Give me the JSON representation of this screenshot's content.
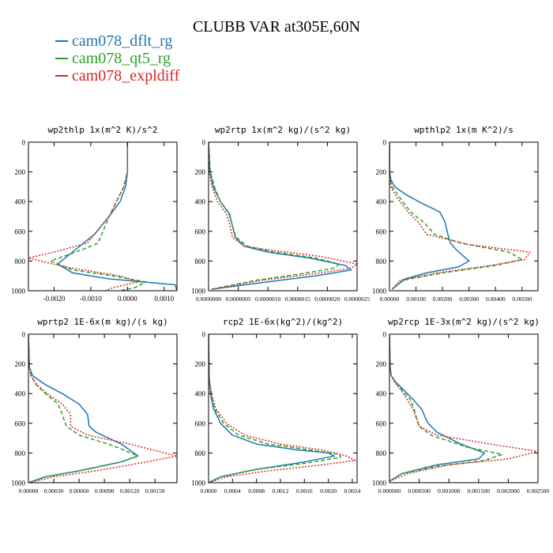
{
  "title": "CLUBB VAR at305E,60N",
  "legend": [
    {
      "name": "cam078_dflt_rg",
      "color": "#1f77b4"
    },
    {
      "name": "cam078_qt5_rg",
      "color": "#2ca02c"
    },
    {
      "name": "cam078_expldiff",
      "color": "#d62728"
    }
  ],
  "chart_data": [
    {
      "type": "line",
      "title": "wp2thlp 1x(m^2 K)/s^2",
      "ylim": [
        1000,
        0
      ],
      "xlim": [
        -0.0027,
        0.00135
      ],
      "yticks": [
        "0",
        "200",
        "400",
        "600",
        "800",
        "1000"
      ],
      "yticks_values": [
        0,
        200,
        400,
        600,
        800,
        1000
      ],
      "xticks": [
        "-0.0020",
        "-0.0010",
        "0.0000",
        "0.0010"
      ],
      "xticks_values": [
        -0.002,
        -0.001,
        0.0,
        0.001
      ],
      "series": [
        {
          "color_key": 0,
          "dash": false,
          "x": [
            0.0,
            0.0,
            -5e-05,
            -0.0002,
            -0.0005,
            -0.0007,
            -0.0009,
            -0.0011,
            -0.0013,
            -0.0019,
            -0.0015,
            -0.0005,
            0.0004,
            0.0013,
            0.00135
          ],
          "y": [
            0,
            200,
            300,
            400,
            500,
            560,
            620,
            660,
            700,
            820,
            880,
            920,
            940,
            960,
            1000
          ]
        },
        {
          "color_key": 1,
          "dash": true,
          "x": [
            0.0,
            0.0,
            -0.0001,
            -0.0003,
            -0.0005,
            -0.0006,
            -0.0007,
            -0.0008,
            -0.0012,
            -0.0021,
            -0.0015,
            -0.0004,
            0.0005,
            0.0002,
            -0.0002
          ],
          "y": [
            0,
            200,
            300,
            400,
            500,
            560,
            620,
            680,
            720,
            800,
            860,
            900,
            940,
            980,
            1000
          ]
        },
        {
          "color_key": 2,
          "dash": true,
          "x": [
            0.0,
            0.0,
            -0.0001,
            -0.0003,
            -0.0005,
            -0.0007,
            -0.0009,
            -0.0011,
            -0.002,
            -0.0027,
            -0.0017,
            -0.0002,
            0.0003,
            -0.0004,
            -0.0006
          ],
          "y": [
            0,
            200,
            300,
            400,
            500,
            560,
            620,
            680,
            740,
            780,
            840,
            900,
            940,
            980,
            1000
          ]
        }
      ]
    },
    {
      "type": "line",
      "title": "wp2rtp 1x(m^2 kg)/(s^2 kg)",
      "ylim": [
        1000,
        0
      ],
      "xlim": [
        0.0,
        2.5e-06
      ],
      "yticks": [
        "0",
        "200",
        "400",
        "600",
        "800",
        "1000"
      ],
      "yticks_values": [
        0,
        200,
        400,
        600,
        800,
        1000
      ],
      "xticks": [
        "0.0000000",
        "0.0000005",
        "0.0000010",
        "0.0000015",
        "0.0000020",
        "0.0000025"
      ],
      "xticks_values": [
        0.0,
        5e-07,
        1e-06,
        1.5e-06,
        2e-06,
        2.5e-06
      ],
      "series": [
        {
          "color_key": 0,
          "dash": false,
          "x": [
            0.0,
            2e-08,
            8e-08,
            2e-07,
            3.5e-07,
            4e-07,
            4.5e-07,
            6e-07,
            1e-06,
            1.7e-06,
            2.3e-06,
            2.4e-06,
            1.8e-06,
            1e-06,
            5e-08
          ],
          "y": [
            0,
            200,
            300,
            400,
            480,
            560,
            640,
            700,
            740,
            780,
            830,
            860,
            900,
            940,
            990
          ]
        },
        {
          "color_key": 1,
          "dash": true,
          "x": [
            0.0,
            3e-08,
            1e-07,
            2e-07,
            3.4e-07,
            4e-07,
            4.6e-07,
            6.5e-07,
            1.1e-06,
            1.8e-06,
            2.2e-06,
            2.1e-06,
            1.5e-06,
            8e-07,
            5e-08
          ],
          "y": [
            0,
            200,
            300,
            400,
            480,
            560,
            640,
            700,
            740,
            780,
            820,
            850,
            890,
            930,
            990
          ]
        },
        {
          "color_key": 2,
          "dash": true,
          "x": [
            0.0,
            1e-08,
            6e-08,
            1.5e-07,
            3e-07,
            3.6e-07,
            4e-07,
            6e-07,
            1.1e-06,
            1.9e-06,
            2.5e-06,
            2.4e-06,
            1.7e-06,
            9e-07,
            5e-08
          ],
          "y": [
            0,
            200,
            300,
            400,
            480,
            560,
            640,
            700,
            730,
            770,
            820,
            850,
            890,
            930,
            990
          ]
        }
      ]
    },
    {
      "type": "line",
      "title": "wpthlp2 1x(m K^2)/s",
      "ylim": [
        1000,
        0
      ],
      "xlim": [
        0.0,
        0.0056
      ],
      "yticks": [
        "0",
        "200",
        "400",
        "600",
        "800",
        "1000"
      ],
      "yticks_values": [
        0,
        200,
        400,
        600,
        800,
        1000
      ],
      "xticks": [
        "0.00000",
        "0.00100",
        "0.00200",
        "0.00300",
        "0.00400",
        "0.00500"
      ],
      "xticks_values": [
        0.0,
        0.001,
        0.002,
        0.003,
        0.004,
        0.005
      ],
      "series": [
        {
          "color_key": 0,
          "dash": false,
          "x": [
            0.0,
            1e-05,
            5e-05,
            0.0002,
            0.0006,
            0.0011,
            0.0019,
            0.0021,
            0.0022,
            0.0023,
            0.0025,
            0.003,
            0.0026,
            0.0014,
            0.0006,
            0.0001
          ],
          "y": [
            0,
            200,
            250,
            300,
            350,
            400,
            470,
            540,
            620,
            680,
            720,
            800,
            840,
            880,
            920,
            990
          ]
        },
        {
          "color_key": 1,
          "dash": true,
          "x": [
            0.0,
            1e-05,
            3e-05,
            0.0001,
            0.0003,
            0.0005,
            0.0008,
            0.0013,
            0.0017,
            0.0027,
            0.0045,
            0.005,
            0.004,
            0.002,
            0.0005,
            0.0001
          ],
          "y": [
            0,
            200,
            250,
            300,
            350,
            400,
            470,
            540,
            620,
            680,
            740,
            790,
            830,
            880,
            930,
            990
          ]
        },
        {
          "color_key": 2,
          "dash": true,
          "x": [
            0.0,
            1e-05,
            2e-05,
            5e-05,
            0.0002,
            0.0004,
            0.0007,
            0.0011,
            0.0014,
            0.003,
            0.0053,
            0.0051,
            0.0038,
            0.0018,
            0.0004,
            0.0001
          ],
          "y": [
            0,
            200,
            250,
            300,
            350,
            400,
            470,
            540,
            620,
            690,
            740,
            790,
            830,
            880,
            930,
            990
          ]
        }
      ]
    },
    {
      "type": "line",
      "title": "wprtp2 1E-6x(m kg)/(s kg)",
      "ylim": [
        1000,
        0
      ],
      "xlim": [
        0.0,
        0.00176
      ],
      "yticks": [
        "0",
        "200",
        "400",
        "600",
        "800",
        "1000"
      ],
      "yticks_values": [
        0,
        200,
        400,
        600,
        800,
        1000
      ],
      "xticks": [
        "0.00000",
        "0.00030",
        "0.00060",
        "0.00090",
        "0.00120",
        "0.00150"
      ],
      "xticks_values": [
        0.0,
        0.0003,
        0.0006,
        0.0009,
        0.0012,
        0.0015
      ],
      "series": [
        {
          "color_key": 0,
          "dash": false,
          "x": [
            0.0,
            1e-05,
            5e-05,
            0.0002,
            0.0004,
            0.0006,
            0.0007,
            0.00072,
            0.0008,
            0.0011,
            0.0013,
            0.0011,
            0.0006,
            0.0002,
            0.0
          ],
          "y": [
            0,
            220,
            280,
            340,
            400,
            470,
            540,
            620,
            660,
            740,
            820,
            860,
            920,
            960,
            1000
          ]
        },
        {
          "color_key": 1,
          "dash": true,
          "x": [
            0.0,
            1e-05,
            3e-05,
            9e-05,
            0.0002,
            0.00035,
            0.0004,
            0.00045,
            0.0006,
            0.001,
            0.0013,
            0.0011,
            0.0006,
            0.0002,
            0.0
          ],
          "y": [
            0,
            220,
            280,
            340,
            400,
            470,
            540,
            620,
            680,
            750,
            820,
            860,
            920,
            960,
            1000
          ]
        },
        {
          "color_key": 2,
          "dash": true,
          "x": [
            0.0,
            1e-05,
            3e-05,
            0.0001,
            0.00022,
            0.0004,
            0.0005,
            0.0005,
            0.0007,
            0.0012,
            0.00176,
            0.0014,
            0.0008,
            0.0003,
            0.0
          ],
          "y": [
            0,
            220,
            280,
            340,
            400,
            470,
            540,
            620,
            680,
            740,
            820,
            860,
            920,
            960,
            1000
          ]
        }
      ]
    },
    {
      "type": "line",
      "title": "rcp2 1E-6x(kg^2)/(kg^2)",
      "ylim": [
        1000,
        0
      ],
      "xlim": [
        0.0,
        0.00248
      ],
      "yticks": [
        "0",
        "200",
        "400",
        "600",
        "800",
        "1000"
      ],
      "yticks_values": [
        0,
        200,
        400,
        600,
        800,
        1000
      ],
      "xticks": [
        "0.0000",
        "0.0004",
        "0.0008",
        "0.0012",
        "0.0016",
        "0.0020",
        "0.0024"
      ],
      "xticks_values": [
        0.0,
        0.0004,
        0.0008,
        0.0012,
        0.0016,
        0.002,
        0.0024
      ],
      "series": [
        {
          "color_key": 0,
          "dash": false,
          "x": [
            0.0,
            1e-05,
            3e-05,
            8e-05,
            0.0002,
            0.0004,
            0.0008,
            0.0015,
            0.002,
            0.0021,
            0.0016,
            0.0008,
            0.0002,
            0.0
          ],
          "y": [
            0,
            300,
            400,
            500,
            600,
            680,
            740,
            780,
            800,
            820,
            860,
            910,
            960,
            1000
          ]
        },
        {
          "color_key": 1,
          "dash": true,
          "x": [
            0.0,
            1e-05,
            4e-05,
            0.0001,
            0.00025,
            0.0005,
            0.001,
            0.0017,
            0.0022,
            0.0022,
            0.0016,
            0.0008,
            0.0002,
            0.0
          ],
          "y": [
            0,
            300,
            400,
            500,
            600,
            680,
            740,
            780,
            810,
            830,
            870,
            910,
            960,
            1000
          ]
        },
        {
          "color_key": 2,
          "dash": true,
          "x": [
            0.0,
            1e-05,
            5e-05,
            0.00012,
            0.0003,
            0.0006,
            0.0012,
            0.0019,
            0.0023,
            0.00245,
            0.0019,
            0.001,
            0.0003,
            0.0
          ],
          "y": [
            0,
            300,
            400,
            500,
            600,
            680,
            740,
            780,
            820,
            850,
            880,
            920,
            960,
            1000
          ]
        }
      ]
    },
    {
      "type": "line",
      "title": "wp2rcp 1E-3x(m^2 kg)/(s^2 kg)",
      "ylim": [
        1000,
        0
      ],
      "xlim": [
        0.0,
        0.0025
      ],
      "yticks": [
        "0",
        "200",
        "400",
        "600",
        "800",
        "1000"
      ],
      "yticks_values": [
        0,
        200,
        400,
        600,
        800,
        1000
      ],
      "xticks": [
        "0.000000",
        "0.000500",
        "0.001000",
        "0.001500",
        "0.002000",
        "0.002500"
      ],
      "xticks_values": [
        0.0,
        0.0005,
        0.001,
        0.0015,
        0.002,
        0.0025
      ],
      "series": [
        {
          "color_key": 0,
          "dash": false,
          "x": [
            0.0,
            1e-05,
            3e-05,
            0.0001,
            0.00025,
            0.0004,
            0.00055,
            0.0006,
            0.00065,
            0.0008,
            0.0012,
            0.0016,
            0.0015,
            0.0008,
            0.0002,
            0.0
          ],
          "y": [
            0,
            220,
            280,
            320,
            380,
            440,
            510,
            560,
            600,
            660,
            740,
            800,
            840,
            880,
            940,
            990
          ]
        },
        {
          "color_key": 1,
          "dash": true,
          "x": [
            0.0,
            1e-05,
            3e-05,
            0.0001,
            0.00022,
            0.00035,
            0.00042,
            0.00045,
            0.0005,
            0.0007,
            0.0013,
            0.0019,
            0.0016,
            0.0008,
            0.0002,
            0.0
          ],
          "y": [
            0,
            220,
            280,
            320,
            380,
            440,
            510,
            560,
            620,
            680,
            760,
            810,
            850,
            890,
            940,
            990
          ]
        },
        {
          "color_key": 2,
          "dash": true,
          "x": [
            0.0,
            1e-05,
            3e-05,
            8e-05,
            0.0002,
            0.0003,
            0.0004,
            0.00045,
            0.0005,
            0.0008,
            0.0017,
            0.0025,
            0.002,
            0.001,
            0.0003,
            0.0
          ],
          "y": [
            0,
            220,
            280,
            320,
            380,
            440,
            510,
            560,
            620,
            680,
            740,
            790,
            840,
            880,
            940,
            990
          ]
        }
      ]
    }
  ]
}
